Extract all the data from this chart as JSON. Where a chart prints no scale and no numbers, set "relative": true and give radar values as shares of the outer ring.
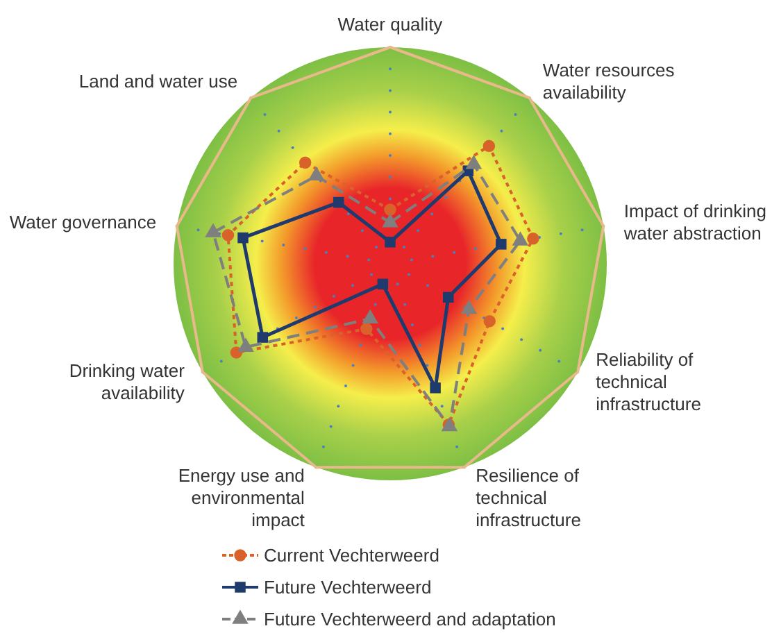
{
  "chart_data": {
    "type": "radar",
    "relative": true,
    "grid": true,
    "legend": "bottom",
    "categories": [
      "Water quality",
      "Water resources availability",
      "Impact of drinking water abstraction",
      "Reliability of technical infrastructure",
      "Resilience of technical infrastructure",
      "Energy use and environmental impact",
      "Drinking water availability",
      "Water governance",
      "Land and water use"
    ],
    "series": [
      {
        "name": "Current Vechterweerd",
        "color": "#d9622b",
        "marker": "circle",
        "line_style": "dotted",
        "values": [
          0.25,
          0.71,
          0.67,
          0.53,
          0.79,
          0.32,
          0.82,
          0.76,
          0.61
        ]
      },
      {
        "name": "Future Vechterweerd",
        "color": "#1f3b6e",
        "marker": "square",
        "line_style": "solid",
        "values": [
          0.1,
          0.56,
          0.52,
          0.31,
          0.61,
          0.1,
          0.68,
          0.69,
          0.37
        ]
      },
      {
        "name": "Future Vechterweerd and adaptation",
        "color": "#7f7f7f",
        "marker": "triangle",
        "line_style": "dashed",
        "values": [
          0.19,
          0.6,
          0.61,
          0.42,
          0.8,
          0.27,
          0.77,
          0.83,
          0.53
        ]
      }
    ]
  }
}
